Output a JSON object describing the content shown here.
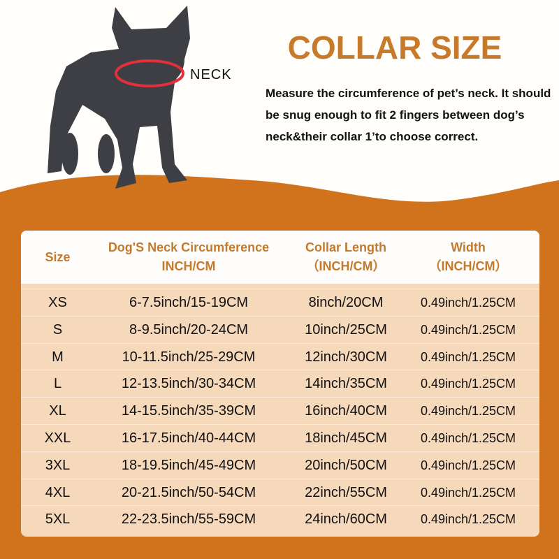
{
  "title": "COLLAR SIZE",
  "neck_label": "NECK",
  "description": "Measure the circumference of pet’s neck. It should be snug enough to fit 2 fingers between dog’s neck&their collar 1’to choose correct.",
  "colors": {
    "accent": "#c77a2a",
    "band": "#d0731c",
    "row": "#f6d8bb",
    "collar": "#e0303c"
  },
  "table": {
    "headers": {
      "size": "Size",
      "neck_1": "Dog'S Neck Circumference",
      "neck_2": "INCH/CM",
      "length_1": "Collar Length",
      "length_2": "（INCH/CM）",
      "width_1": "Width",
      "width_2": "（INCH/CM）"
    },
    "rows": [
      {
        "size": "XS",
        "neck": "6-7.5inch/15-19CM",
        "length": "8inch/20CM",
        "width": "0.49inch/1.25CM"
      },
      {
        "size": "S",
        "neck": "8-9.5inch/20-24CM",
        "length": "10inch/25CM",
        "width": "0.49inch/1.25CM"
      },
      {
        "size": "M",
        "neck": "10-11.5inch/25-29CM",
        "length": "12inch/30CM",
        "width": "0.49inch/1.25CM"
      },
      {
        "size": "L",
        "neck": "12-13.5inch/30-34CM",
        "length": "14inch/35CM",
        "width": "0.49inch/1.25CM"
      },
      {
        "size": "XL",
        "neck": "14-15.5inch/35-39CM",
        "length": "16inch/40CM",
        "width": "0.49inch/1.25CM"
      },
      {
        "size": "XXL",
        "neck": "16-17.5inch/40-44CM",
        "length": "18inch/45CM",
        "width": "0.49inch/1.25CM"
      },
      {
        "size": "3XL",
        "neck": "18-19.5inch/45-49CM",
        "length": "20inch/50CM",
        "width": "0.49inch/1.25CM"
      },
      {
        "size": "4XL",
        "neck": "20-21.5inch/50-54CM",
        "length": "22inch/55CM",
        "width": "0.49inch/1.25CM"
      },
      {
        "size": "5XL",
        "neck": "22-23.5inch/55-59CM",
        "length": "24inch/60CM",
        "width": "0.49inch/1.25CM"
      }
    ]
  }
}
